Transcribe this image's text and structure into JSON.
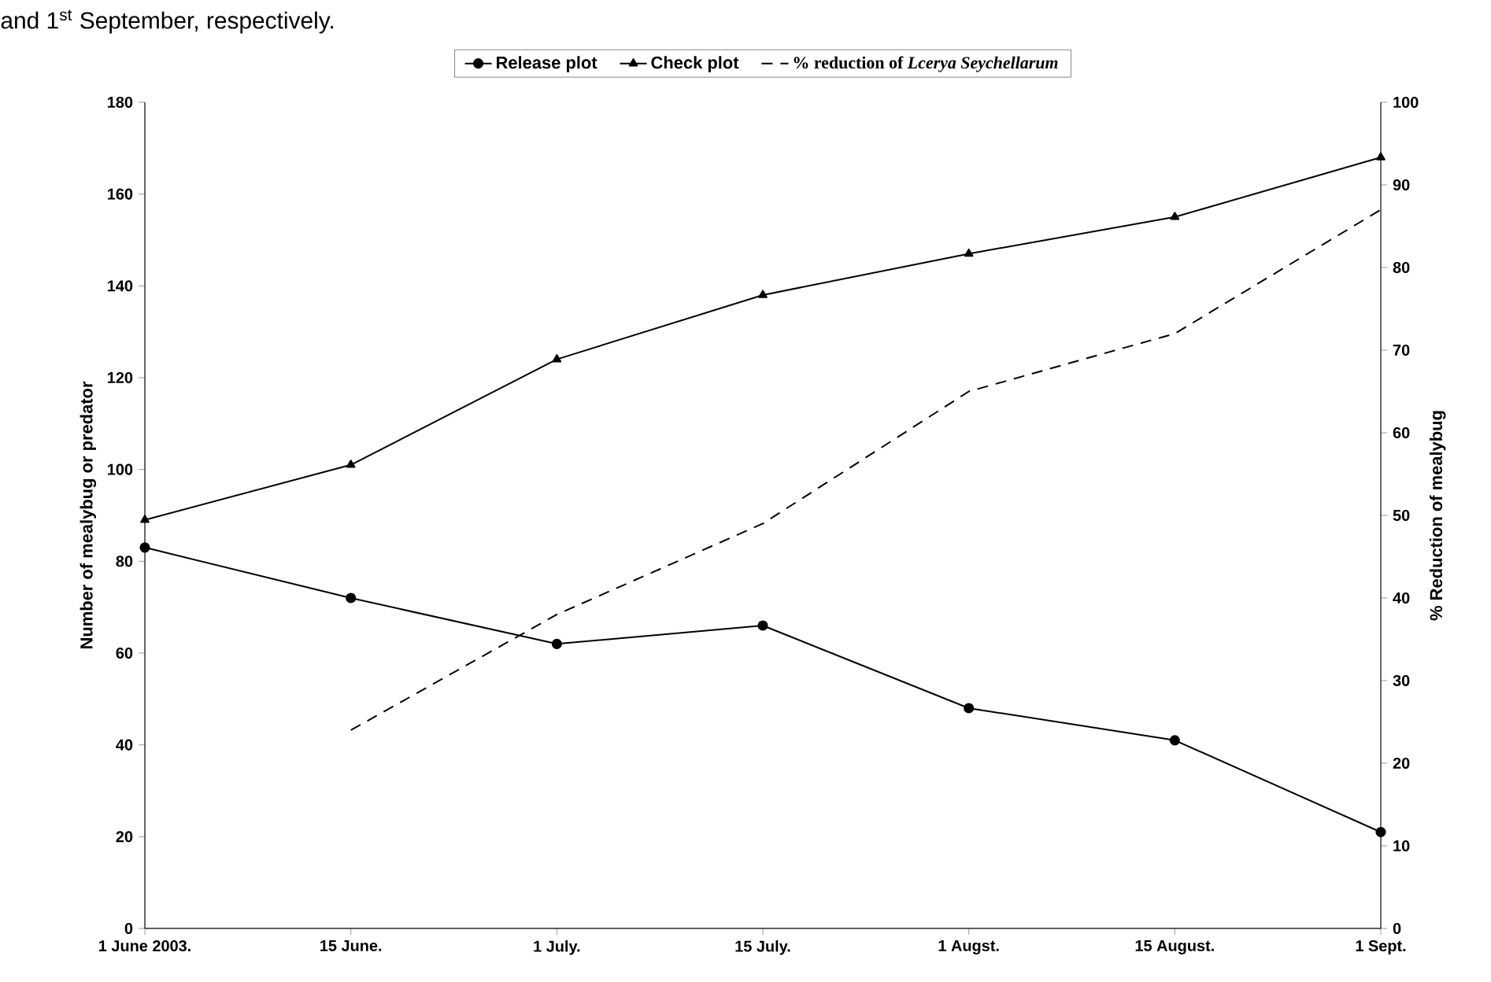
{
  "chart_data": {
    "type": "line",
    "annotations": [
      "and 1$^{st}$ September, respectively."
    ],
    "categories": [
      "1 June 2003.",
      "15 June.",
      "1 July.",
      "15 July.",
      "1 Augst.",
      "15 August.",
      "1 Sept."
    ],
    "ylabel": "Number of mealybug or predator",
    "y2label": "% Reduction of mealybug",
    "ylim": [
      0,
      180
    ],
    "yticks": [
      0,
      20,
      40,
      60,
      80,
      100,
      120,
      140,
      160,
      180
    ],
    "y2lim": [
      0,
      100
    ],
    "y2ticks": [
      0,
      10,
      20,
      30,
      40,
      50,
      60,
      70,
      80,
      90,
      100
    ],
    "legend": "top",
    "grid": false,
    "series": [
      {
        "name": "Release plot",
        "color": "#000000",
        "marker": "circle",
        "line_style": "solid",
        "values": [
          83,
          72,
          62,
          66,
          48,
          41,
          21
        ]
      },
      {
        "name": "Check plot",
        "color": "#000000",
        "marker": "triangle",
        "line_style": "solid",
        "values": [
          89,
          101,
          124,
          138,
          147,
          155,
          168
        ]
      },
      {
        "name": "% reduction of *Lcerya Seychellarum*",
        "color": "#000000",
        "marker": "none",
        "line_style": "dashed",
        "axis": "y2",
        "values": [
          null,
          24,
          38,
          49,
          65,
          72,
          87
        ]
      }
    ]
  }
}
